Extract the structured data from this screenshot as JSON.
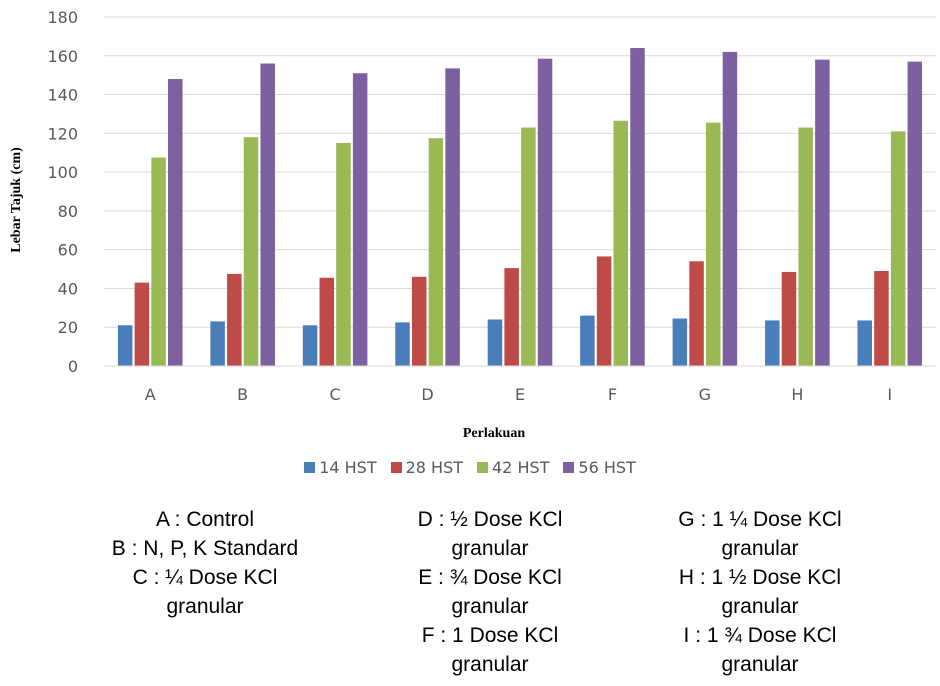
{
  "chart_data": {
    "type": "bar",
    "categories": [
      "A",
      "B",
      "C",
      "D",
      "E",
      "F",
      "G",
      "H",
      "I"
    ],
    "series": [
      {
        "name": "14 HST",
        "color": "#4a7ebb",
        "values": [
          21,
          23,
          21,
          22.5,
          24,
          26,
          24.5,
          23.5,
          23.5
        ]
      },
      {
        "name": "28 HST",
        "color": "#be4b48",
        "values": [
          43,
          47.5,
          45.5,
          46,
          50.5,
          56.5,
          54,
          48.5,
          49
        ]
      },
      {
        "name": "42 HST",
        "color": "#98b954",
        "values": [
          107.5,
          118,
          115,
          117.5,
          123,
          126.5,
          125.5,
          123,
          121
        ]
      },
      {
        "name": "56 HST",
        "color": "#7d60a0",
        "values": [
          148,
          156,
          151,
          153.5,
          158.5,
          164,
          162,
          158,
          157
        ]
      }
    ],
    "xlabel": "Perlakuan",
    "ylabel": "Lebar Tajuk (cm)",
    "ylim": [
      0,
      180
    ],
    "yticks": [
      "0",
      "20",
      "40",
      "60",
      "80",
      "100",
      "120",
      "140",
      "160",
      "180"
    ],
    "grid": true,
    "legend_position": "bottom"
  },
  "notes": {
    "col1": [
      "A : Control",
      "B : N, P, K Standard",
      "C : ¼ Dose KCl",
      "granular"
    ],
    "col2": [
      "D : ½ Dose KCl",
      "granular",
      "E : ¾  Dose KCl",
      "granular",
      "F : 1 Dose KCl",
      "granular"
    ],
    "col3": [
      "G : 1 ¼ Dose KCl",
      "granular",
      "H : 1 ½ Dose KCl",
      "granular",
      "I : 1 ¾  Dose KCl",
      "granular"
    ]
  }
}
